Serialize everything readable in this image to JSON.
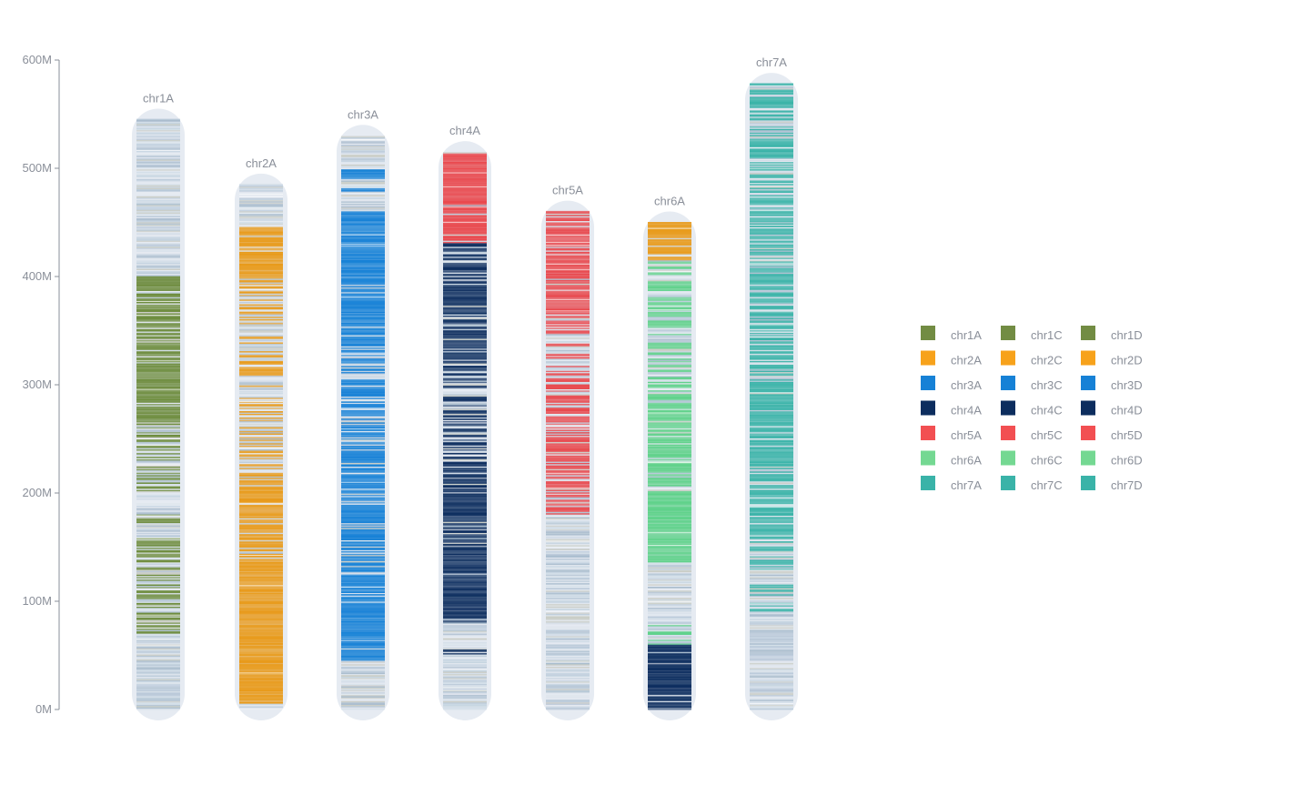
{
  "chart_data": {
    "type": "chromosome-ideogram",
    "y_axis": {
      "ticks": [
        "0M",
        "100M",
        "200M",
        "300M",
        "400M",
        "500M",
        "600M"
      ],
      "tick_values": [
        0,
        100,
        200,
        300,
        400,
        500,
        600
      ],
      "ylim": [
        0,
        600
      ]
    },
    "chromosomes": [
      {
        "name": "chr1A",
        "length": 545,
        "color": "#6b8a3a",
        "segments": [
          [
            70,
            160,
            0.55
          ],
          [
            160,
            230,
            0.3
          ],
          [
            230,
            290,
            0.55
          ],
          [
            290,
            340,
            0.9
          ],
          [
            340,
            360,
            0.6
          ],
          [
            360,
            400,
            0.9
          ]
        ]
      },
      {
        "name": "chr2A",
        "length": 485,
        "color": "#e89a1a",
        "segments": [
          [
            5,
            210,
            0.92
          ],
          [
            210,
            260,
            0.5
          ],
          [
            260,
            300,
            0.35
          ],
          [
            300,
            370,
            0.45
          ],
          [
            370,
            390,
            0.6
          ],
          [
            390,
            445,
            0.85
          ]
        ]
      },
      {
        "name": "chr3A",
        "length": 530,
        "color": "#1681d6",
        "segments": [
          [
            45,
            95,
            0.97
          ],
          [
            95,
            130,
            0.85
          ],
          [
            130,
            240,
            0.7
          ],
          [
            240,
            320,
            0.6
          ],
          [
            320,
            390,
            0.8
          ],
          [
            390,
            460,
            0.97
          ],
          [
            460,
            490,
            0.15
          ],
          [
            490,
            500,
            0.8
          ]
        ]
      },
      {
        "name": "chr4A",
        "length": 515,
        "color": "#0c2d5e",
        "segments": [
          [
            50,
            55,
            0.7
          ],
          [
            80,
            200,
            0.92
          ],
          [
            200,
            230,
            0.85
          ],
          [
            230,
            320,
            0.6
          ],
          [
            320,
            360,
            0.7
          ],
          [
            360,
            430,
            0.75
          ],
          [
            430,
            515,
            0.0
          ]
        ],
        "special": [
          [
            430,
            515,
            "#e9474c",
            0.95
          ]
        ]
      },
      {
        "name": "chr5A",
        "length": 460,
        "color": "#e8474c",
        "segments": [
          [
            180,
            260,
            0.75
          ],
          [
            260,
            300,
            0.5
          ],
          [
            300,
            360,
            0.45
          ],
          [
            360,
            460,
            0.85
          ]
        ]
      },
      {
        "name": "chr6A",
        "length": 450,
        "color": "#5fd18a",
        "segments": [
          [
            0,
            60,
            0.0
          ],
          [
            60,
            80,
            0.3
          ],
          [
            135,
            200,
            0.95
          ],
          [
            200,
            300,
            0.75
          ],
          [
            300,
            380,
            0.45
          ],
          [
            380,
            415,
            0.4
          ],
          [
            415,
            450,
            0.0
          ]
        ],
        "special": [
          [
            0,
            60,
            "#0c2d5e",
            0.97
          ],
          [
            415,
            450,
            "#e89a1a",
            0.85
          ]
        ]
      },
      {
        "name": "chr7A",
        "length": 578,
        "color": "#3ab3a8",
        "segments": [
          [
            70,
            160,
            0.4
          ],
          [
            160,
            300,
            0.8
          ],
          [
            300,
            380,
            0.7
          ],
          [
            380,
            470,
            0.75
          ],
          [
            470,
            578,
            0.55
          ]
        ]
      }
    ],
    "legend": {
      "columns": [
        [
          {
            "label": "chr1A",
            "color": "#728c43"
          },
          {
            "label": "chr2A",
            "color": "#f7a21b"
          },
          {
            "label": "chr3A",
            "color": "#1681d6"
          },
          {
            "label": "chr4A",
            "color": "#0c2d5e"
          },
          {
            "label": "chr5A",
            "color": "#f24f52"
          },
          {
            "label": "chr6A",
            "color": "#74d892"
          },
          {
            "label": "chr7A",
            "color": "#3ab3a8"
          }
        ],
        [
          {
            "label": "chr1C",
            "color": "#728c43"
          },
          {
            "label": "chr2C",
            "color": "#f7a21b"
          },
          {
            "label": "chr3C",
            "color": "#1681d6"
          },
          {
            "label": "chr4C",
            "color": "#0c2d5e"
          },
          {
            "label": "chr5C",
            "color": "#f24f52"
          },
          {
            "label": "chr6C",
            "color": "#74d892"
          },
          {
            "label": "chr7C",
            "color": "#3ab3a8"
          }
        ],
        [
          {
            "label": "chr1D",
            "color": "#728c43"
          },
          {
            "label": "chr2D",
            "color": "#f7a21b"
          },
          {
            "label": "chr3D",
            "color": "#1681d6"
          },
          {
            "label": "chr4D",
            "color": "#0c2d5e"
          },
          {
            "label": "chr5D",
            "color": "#f24f52"
          },
          {
            "label": "chr6D",
            "color": "#74d892"
          },
          {
            "label": "chr7D",
            "color": "#3ab3a8"
          }
        ]
      ]
    },
    "background_band_colors": [
      "#c4d3e0",
      "#d3dee8",
      "#b8c8d8",
      "#e0e6ee",
      "#a9bccd",
      "#c9ccc5"
    ],
    "capsule_color": "#e6ebf2",
    "axis_color": "#8a8f99"
  }
}
